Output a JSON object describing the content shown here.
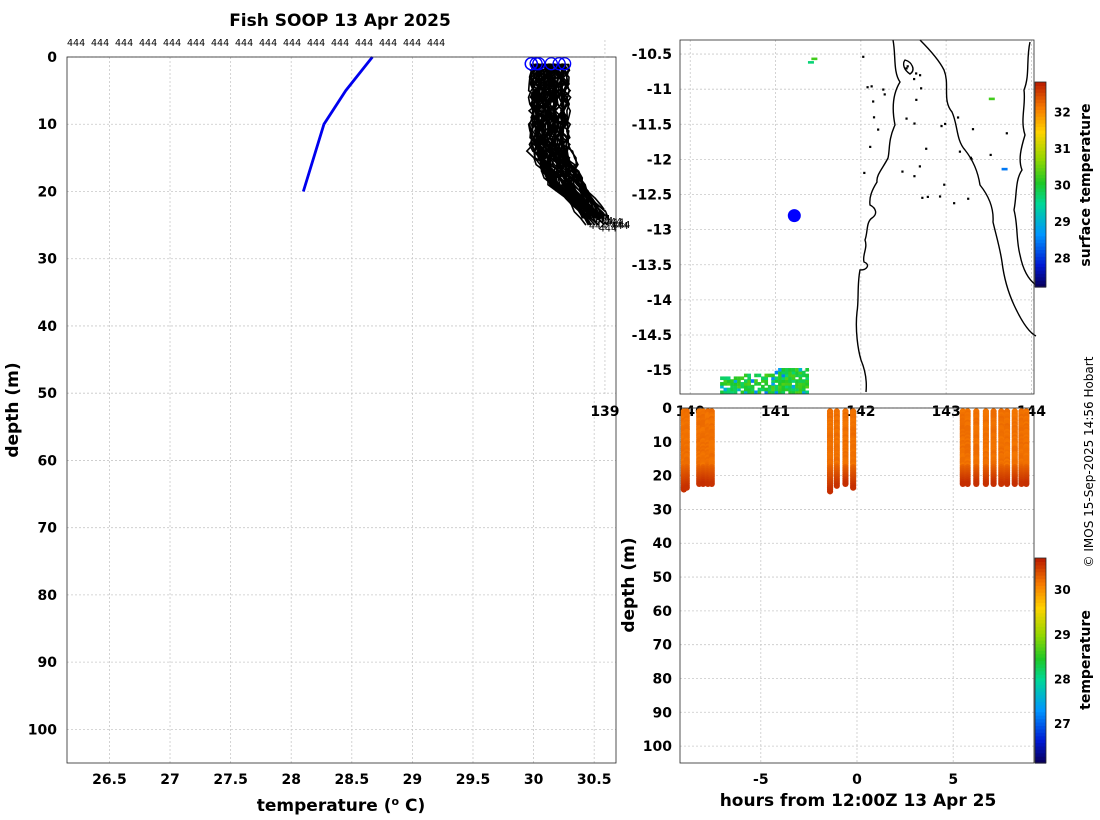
{
  "figure_title": "Fish SOOP 13 Apr 2025",
  "credit": "© IMOS 15-Sep-2025 14:56 Hobart",
  "platform_label": "444",
  "colors": {
    "reference": "#0000ee",
    "profiles": "#000000",
    "marker": "#0000ff"
  },
  "chart_data": [
    {
      "id": "profile_plot",
      "type": "line",
      "title": "Fish SOOP 13 Apr 2025",
      "xlabel": "temperature (° C)",
      "ylabel": "depth (m)",
      "xlim": [
        26.15,
        30.68
      ],
      "ylim": [
        105,
        0
      ],
      "xticks": [
        26.5,
        27,
        27.5,
        28,
        28.5,
        29,
        29.5,
        30,
        30.5
      ],
      "yticks": [
        0,
        10,
        20,
        30,
        40,
        50,
        60,
        70,
        80,
        90,
        100
      ],
      "grid": true,
      "top_labels": [
        "444",
        "444",
        "444",
        "444",
        "444",
        "444",
        "444",
        "444",
        "444",
        "444",
        "444",
        "444",
        "444",
        "444",
        "444",
        "444",
        "444",
        "444",
        "444",
        "444",
        "444",
        "444",
        "444",
        "444",
        "444",
        "444",
        "444",
        "444",
        "444",
        "444",
        "444",
        "444",
        "444",
        "444",
        "444",
        "444",
        "444",
        "444",
        "444",
        "444",
        "444",
        "444",
        "444",
        "444",
        "444",
        "444",
        "444",
        "444",
        "444",
        "444",
        "444",
        "444",
        "444",
        "444",
        "444",
        "444",
        "444",
        "444",
        "444",
        "444",
        "444",
        "444"
      ],
      "reference_profile": {
        "name": "climatology",
        "temperature": [
          28.67,
          28.45,
          28.27,
          28.1
        ],
        "depth": [
          0,
          5,
          10,
          20
        ]
      },
      "profile_count": 62,
      "surface_temperature_range": [
        29.98,
        30.27
      ],
      "bottom_depth_range": [
        23.5,
        25.5
      ],
      "bottom_temperature_range": [
        30.4,
        30.65
      ]
    },
    {
      "id": "location_map",
      "type": "heatmap",
      "xlim": [
        139.88,
        144.03
      ],
      "ylim": [
        -15.34,
        -10.3
      ],
      "xticks": [
        139,
        140,
        141,
        142,
        143,
        144
      ],
      "yticks": [
        -10.5,
        -11,
        -11.5,
        -12,
        -12.5,
        -13,
        -13.5,
        -14,
        -14.5,
        -15
      ],
      "ytick_labels": [
        "-10.5",
        "-11",
        "-11.5",
        "-12",
        "-12.5",
        "-13",
        "-13.5",
        "-14",
        "-14.5",
        "-15"
      ],
      "colorbar": {
        "label": "surface temperature",
        "range": [
          27.2,
          32.8
        ],
        "ticks": [
          28,
          29,
          30,
          31,
          32
        ]
      },
      "position_marker": {
        "lon": 141.22,
        "lat": -12.8
      },
      "grid": true
    },
    {
      "id": "section_plot",
      "type": "scatter",
      "xlabel": "hours from 12:00Z 13 Apr 25",
      "ylabel": "depth (m)",
      "xlim": [
        -9.2,
        9.2
      ],
      "ylim": [
        105,
        0
      ],
      "xticks": [
        -5,
        0,
        5
      ],
      "yticks": [
        0,
        10,
        20,
        30,
        40,
        50,
        60,
        70,
        80,
        90,
        100
      ],
      "colorbar": {
        "label": "temperature",
        "range": [
          26.1,
          30.7
        ],
        "ticks": [
          27,
          28,
          29,
          30
        ]
      },
      "casts": [
        {
          "hour": -9.0,
          "max_depth": 24.5
        },
        {
          "hour": -8.85,
          "max_depth": 24.0
        },
        {
          "hour": -8.2,
          "max_depth": 23.0
        },
        {
          "hour": -8.0,
          "max_depth": 22.5
        },
        {
          "hour": -7.75,
          "max_depth": 22.8
        },
        {
          "hour": -7.55,
          "max_depth": 23.0
        },
        {
          "hour": -1.4,
          "max_depth": 24.8
        },
        {
          "hour": -1.05,
          "max_depth": 23.5
        },
        {
          "hour": -0.6,
          "max_depth": 22.5
        },
        {
          "hour": -0.2,
          "max_depth": 23.8
        },
        {
          "hour": 5.5,
          "max_depth": 22.5
        },
        {
          "hour": 5.75,
          "max_depth": 22.5
        },
        {
          "hour": 6.2,
          "max_depth": 22.6
        },
        {
          "hour": 6.7,
          "max_depth": 22.8
        },
        {
          "hour": 7.1,
          "max_depth": 22.5
        },
        {
          "hour": 7.5,
          "max_depth": 23.0
        },
        {
          "hour": 7.8,
          "max_depth": 22.8
        },
        {
          "hour": 8.2,
          "max_depth": 22.5
        },
        {
          "hour": 8.55,
          "max_depth": 23.0
        },
        {
          "hour": 8.8,
          "max_depth": 22.7
        }
      ]
    }
  ]
}
